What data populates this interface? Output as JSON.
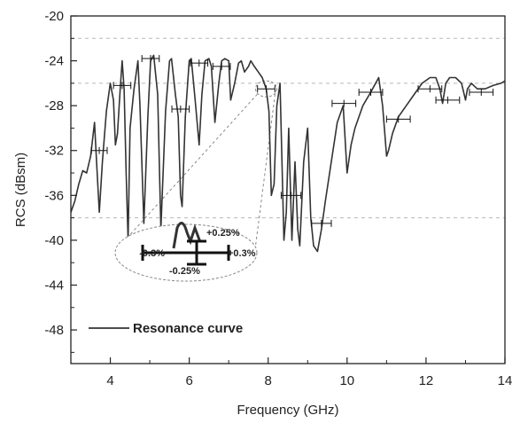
{
  "chart_data": {
    "type": "line",
    "xlabel": "Frequency (GHz)",
    "ylabel": "RCS (dBsm)",
    "xlim": [
      3,
      14
    ],
    "ylim": [
      -51,
      -20
    ],
    "xticks": [
      4,
      6,
      8,
      10,
      12,
      14
    ],
    "xtick_labels": [
      "4",
      "6",
      "8",
      "10",
      "12",
      "14"
    ],
    "yticks": [
      -48,
      -44,
      -40,
      -36,
      -32,
      -28,
      -24,
      -20
    ],
    "ytick_labels": [
      "-48",
      "-44",
      "-40",
      "-36",
      "-32",
      "-28",
      "-24",
      "-20"
    ],
    "grid": "dashed at -22, -26 and -38",
    "reference_lines": [
      -22,
      -26,
      -38
    ],
    "legend": {
      "position": "bottom-left",
      "entries": [
        "Resonance curve"
      ]
    },
    "series": [
      {
        "name": "Resonance curve",
        "color": "#333333",
        "x": [
          3.0,
          3.1,
          3.2,
          3.3,
          3.4,
          3.5,
          3.6,
          3.65,
          3.72,
          3.8,
          3.9,
          4.0,
          4.08,
          4.13,
          4.18,
          4.25,
          4.3,
          4.35,
          4.4,
          4.45,
          4.5,
          4.6,
          4.7,
          4.75,
          4.85,
          4.95,
          5.02,
          5.1,
          5.2,
          5.28,
          5.4,
          5.5,
          5.55,
          5.65,
          5.72,
          5.78,
          5.82,
          5.9,
          6.0,
          6.05,
          6.15,
          6.25,
          6.32,
          6.4,
          6.5,
          6.56,
          6.65,
          6.75,
          6.82,
          6.9,
          7.0,
          7.05,
          7.15,
          7.25,
          7.32,
          7.4,
          7.5,
          7.56,
          7.65,
          7.75,
          7.85,
          7.95,
          8.02,
          8.08,
          8.15,
          8.22,
          8.3,
          8.35,
          8.4,
          8.46,
          8.52,
          8.6,
          8.68,
          8.75,
          8.8,
          8.9,
          9.0,
          9.08,
          9.15,
          9.25,
          9.35,
          9.45,
          9.6,
          9.75,
          9.9,
          10.0,
          10.1,
          10.2,
          10.4,
          10.6,
          10.8,
          10.9,
          11.0,
          11.05,
          11.15,
          11.3,
          11.5,
          11.7,
          11.9,
          12.1,
          12.25,
          12.35,
          12.42,
          12.5,
          12.6,
          12.75,
          12.9,
          13.0,
          13.05,
          13.15,
          13.3,
          13.5,
          13.7,
          13.9,
          14.0
        ],
        "y": [
          -37.5,
          -36.5,
          -35.0,
          -33.8,
          -34.0,
          -32.5,
          -29.5,
          -33.0,
          -37.5,
          -33.0,
          -28.5,
          -26.0,
          -27.5,
          -31.5,
          -30.5,
          -26.5,
          -24.0,
          -26.5,
          -34.0,
          -40.0,
          -30.0,
          -26.5,
          -24.0,
          -28.0,
          -38.5,
          -29.0,
          -24.0,
          -23.5,
          -27.0,
          -39.0,
          -28.5,
          -24.0,
          -23.8,
          -27.0,
          -29.0,
          -36.0,
          -37.0,
          -29.0,
          -24.0,
          -23.8,
          -27.5,
          -31.5,
          -27.0,
          -24.0,
          -23.8,
          -24.5,
          -29.5,
          -26.0,
          -24.0,
          -23.8,
          -24.0,
          -27.5,
          -26.0,
          -24.2,
          -24.0,
          -25.0,
          -24.5,
          -24.0,
          -24.5,
          -25.0,
          -25.5,
          -26.5,
          -28.5,
          -36.0,
          -35.0,
          -28.0,
          -26.0,
          -33.0,
          -40.0,
          -37.5,
          -30.0,
          -40.0,
          -33.0,
          -39.0,
          -40.5,
          -33.0,
          -30.0,
          -38.0,
          -40.5,
          -41.0,
          -39.0,
          -36.5,
          -33.0,
          -29.5,
          -28.0,
          -34.0,
          -31.5,
          -30.0,
          -28.0,
          -26.8,
          -25.5,
          -28.0,
          -32.5,
          -32.0,
          -30.5,
          -29.0,
          -28.0,
          -27.0,
          -26.0,
          -25.5,
          -25.5,
          -26.5,
          -27.8,
          -26.0,
          -25.5,
          -25.5,
          -26.0,
          -27.5,
          -26.5,
          -26.0,
          -26.5,
          -26.5,
          -26.2,
          -26.0,
          -25.8
        ]
      }
    ],
    "error_bars": [
      {
        "x": 3.72,
        "y": -32.0,
        "xerr": 0.2
      },
      {
        "x": 4.3,
        "y": -26.2,
        "xerr": 0.22
      },
      {
        "x": 5.02,
        "y": -23.8,
        "xerr": 0.22
      },
      {
        "x": 5.78,
        "y": -28.3,
        "xerr": 0.22
      },
      {
        "x": 6.25,
        "y": -24.2,
        "xerr": 0.22
      },
      {
        "x": 6.82,
        "y": -24.5,
        "xerr": 0.22
      },
      {
        "x": 7.95,
        "y": -26.5,
        "xerr": 0.22
      },
      {
        "x": 8.58,
        "y": -36.0,
        "xerr": 0.25
      },
      {
        "x": 9.35,
        "y": -38.5,
        "xerr": 0.25
      },
      {
        "x": 9.92,
        "y": -27.8,
        "xerr": 0.3
      },
      {
        "x": 10.6,
        "y": -26.8,
        "xerr": 0.3
      },
      {
        "x": 11.3,
        "y": -29.2,
        "xerr": 0.3
      },
      {
        "x": 12.1,
        "y": -26.5,
        "xerr": 0.3
      },
      {
        "x": 12.55,
        "y": -27.5,
        "xerr": 0.3
      },
      {
        "x": 13.4,
        "y": -26.8,
        "xerr": 0.3
      }
    ],
    "inset": {
      "source_point": {
        "x": 7.95,
        "y": -26.5
      },
      "labels": {
        "up": "+0.25%",
        "down": "-0.25%",
        "left": "-0.3%",
        "right": "+0.3%"
      }
    }
  }
}
